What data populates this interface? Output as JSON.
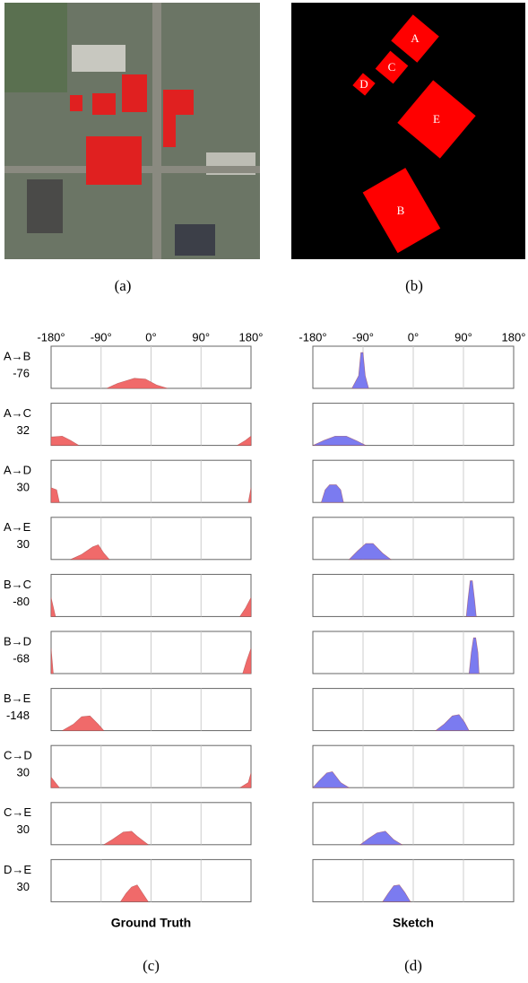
{
  "image_panel": {
    "caption": "(a)"
  },
  "map_panel": {
    "caption": "(b)",
    "labels": [
      "A",
      "C",
      "D",
      "E",
      "B"
    ]
  },
  "pairs": [
    {
      "label": "A→B",
      "value": -76
    },
    {
      "label": "A→C",
      "value": 32
    },
    {
      "label": "A→D",
      "value": 30
    },
    {
      "label": "A→E",
      "value": 30
    },
    {
      "label": "B→C",
      "value": -80
    },
    {
      "label": "B→D",
      "value": -68
    },
    {
      "label": "B→E",
      "value": -148
    },
    {
      "label": "C→D",
      "value": 30
    },
    {
      "label": "C→E",
      "value": 30
    },
    {
      "label": "D→E",
      "value": 30
    }
  ],
  "chart_data": [
    {
      "type": "area",
      "title": "Ground Truth",
      "caption": "(c)",
      "color": "#f06a6a",
      "xlim": [
        -180,
        180
      ],
      "ylim": [
        0,
        1
      ],
      "xticks": [
        {
          "value": -180,
          "label": "-180°"
        },
        {
          "value": -90,
          "label": "-90°"
        },
        {
          "value": 0,
          "label": "0°"
        },
        {
          "value": 90,
          "label": "90°"
        },
        {
          "value": 180,
          "label": "180°"
        }
      ],
      "panels": [
        {
          "x": [
            -80,
            -60,
            -30,
            -10,
            10,
            30
          ],
          "values": [
            0,
            0.12,
            0.24,
            0.22,
            0.08,
            0
          ]
        },
        {
          "x": [
            -180,
            -160,
            -145,
            -130,
            null,
            155,
            170,
            180
          ],
          "values": [
            0.2,
            0.22,
            0.12,
            0,
            null,
            0,
            0.12,
            0.22
          ]
        },
        {
          "x": [
            -180,
            -170,
            -165,
            null,
            175,
            180
          ],
          "values": [
            0.35,
            0.3,
            0,
            null,
            0,
            0.35
          ]
        },
        {
          "x": [
            -145,
            -125,
            -105,
            -95,
            -85,
            -75
          ],
          "values": [
            0,
            0.12,
            0.3,
            0.35,
            0.15,
            0
          ]
        },
        {
          "x": [
            -180,
            -172,
            null,
            160,
            170,
            180
          ],
          "values": [
            0.45,
            0,
            null,
            0,
            0.2,
            0.45
          ]
        },
        {
          "x": [
            -180,
            -176,
            null,
            165,
            172,
            180
          ],
          "values": [
            0.6,
            0,
            null,
            0,
            0.3,
            0.6
          ]
        },
        {
          "x": [
            -160,
            -140,
            -125,
            -110,
            -95,
            -85
          ],
          "values": [
            0,
            0.15,
            0.33,
            0.35,
            0.15,
            0
          ]
        },
        {
          "x": [
            -180,
            -165,
            null,
            160,
            175,
            180
          ],
          "values": [
            0.25,
            0,
            null,
            0,
            0.12,
            0.35
          ]
        },
        {
          "x": [
            -85,
            -70,
            -50,
            -35,
            -25,
            -5
          ],
          "values": [
            0,
            0.12,
            0.3,
            0.32,
            0.2,
            0
          ]
        },
        {
          "x": [
            -55,
            -45,
            -35,
            -25,
            -15,
            -5
          ],
          "values": [
            0,
            0.2,
            0.35,
            0.4,
            0.2,
            0
          ]
        }
      ]
    },
    {
      "type": "area",
      "title": "Sketch",
      "caption": "(d)",
      "color": "#7b7bf0",
      "xlim": [
        -180,
        180
      ],
      "ylim": [
        0,
        1
      ],
      "xticks": [
        {
          "value": -180,
          "label": "-180°"
        },
        {
          "value": -90,
          "label": "-90°"
        },
        {
          "value": 0,
          "label": "0°"
        },
        {
          "value": 90,
          "label": "90°"
        },
        {
          "value": 180,
          "label": "180°"
        }
      ],
      "panels": [
        {
          "x": [
            -110,
            -98,
            -94,
            -90,
            -86,
            -80
          ],
          "values": [
            0,
            0.3,
            0.85,
            0.85,
            0.3,
            0
          ]
        },
        {
          "x": [
            -180,
            -160,
            -140,
            -120,
            -100,
            -85
          ],
          "values": [
            0,
            0.12,
            0.22,
            0.22,
            0.1,
            0
          ]
        },
        {
          "x": [
            -165,
            -158,
            -150,
            -138,
            -130,
            -125
          ],
          "values": [
            0,
            0.3,
            0.42,
            0.42,
            0.3,
            0
          ]
        },
        {
          "x": [
            -115,
            -100,
            -85,
            -72,
            -55,
            -40
          ],
          "values": [
            0,
            0.2,
            0.38,
            0.38,
            0.15,
            0
          ]
        },
        {
          "x": [
            95,
            98,
            102,
            106,
            110,
            113
          ],
          "values": [
            0,
            0.4,
            0.85,
            0.85,
            0.4,
            0
          ]
        },
        {
          "x": [
            100,
            104,
            108,
            112,
            116,
            118
          ],
          "values": [
            0,
            0.5,
            0.85,
            0.85,
            0.5,
            0
          ]
        },
        {
          "x": [
            40,
            55,
            70,
            82,
            92,
            100
          ],
          "values": [
            0,
            0.15,
            0.35,
            0.38,
            0.2,
            0
          ]
        },
        {
          "x": [
            -180,
            -170,
            -155,
            -145,
            -130,
            -115
          ],
          "values": [
            0,
            0.15,
            0.35,
            0.38,
            0.12,
            0
          ]
        },
        {
          "x": [
            -95,
            -80,
            -65,
            -50,
            -35,
            -20
          ],
          "values": [
            0,
            0.15,
            0.28,
            0.32,
            0.12,
            0
          ]
        },
        {
          "x": [
            -55,
            -45,
            -35,
            -25,
            -15,
            -5
          ],
          "values": [
            0,
            0.2,
            0.38,
            0.4,
            0.22,
            0
          ]
        }
      ]
    }
  ]
}
